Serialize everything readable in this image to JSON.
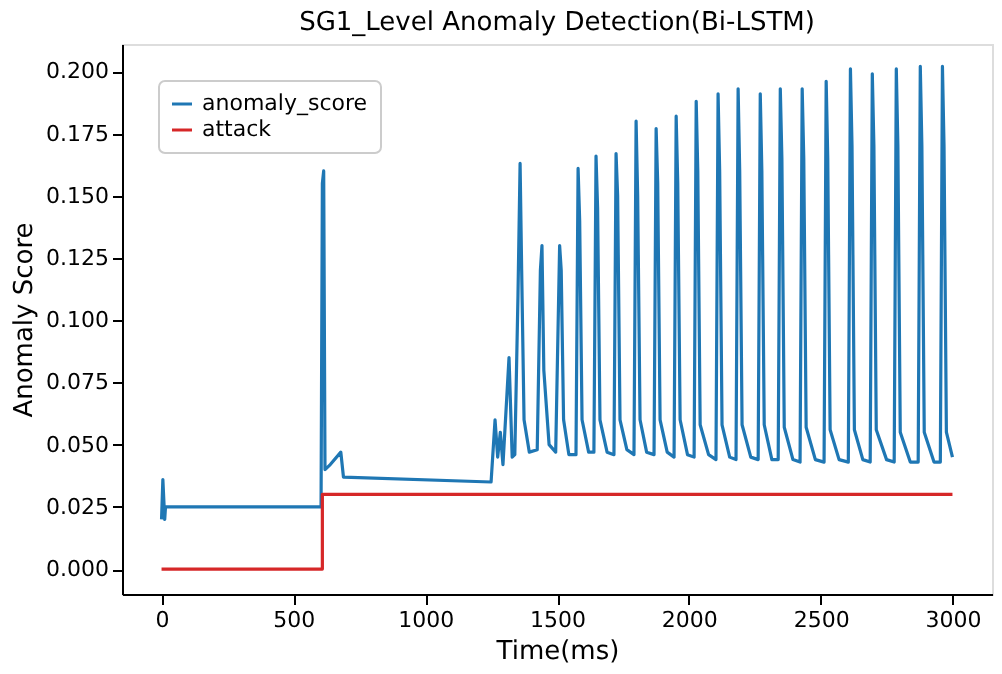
{
  "chart_data": {
    "type": "line",
    "title": "SG1_Level Anomaly Detection(Bi-LSTM)",
    "xlabel": "Time(ms)",
    "ylabel": "Anomaly Score",
    "xlim": [
      -150,
      3150
    ],
    "xticks": [
      0,
      500,
      1000,
      1500,
      2000,
      2500,
      3000
    ],
    "ylim": [
      -0.01,
      0.211
    ],
    "yticks": [
      {
        "value": 0,
        "label": "0.000"
      },
      {
        "value": 0.025,
        "label": "0.025"
      },
      {
        "value": 0.05,
        "label": "0.050"
      },
      {
        "value": 0.075,
        "label": "0.075"
      },
      {
        "value": 0.1,
        "label": "0.100"
      },
      {
        "value": 0.125,
        "label": "0.125"
      },
      {
        "value": 0.15,
        "label": "0.150"
      },
      {
        "value": 0.175,
        "label": "0.175"
      },
      {
        "value": 0.2,
        "label": "0.200"
      }
    ],
    "grid": false,
    "legend": "top left",
    "line_style": "solid",
    "marker": "none",
    "series": [
      {
        "name": "anomaly_score",
        "color": "#1f77b4",
        "x": [
          0,
          5,
          12,
          15,
          605,
          610,
          615,
          620,
          640,
          680,
          690,
          1250,
          1265,
          1275,
          1285,
          1295,
          1318,
          1330,
          1340,
          1352,
          1360,
          1366,
          1375,
          1395,
          1425,
          1437,
          1443,
          1450,
          1470,
          1495,
          1510,
          1516,
          1525,
          1545,
          1572,
          1580,
          1586,
          1595,
          1620,
          1640,
          1648,
          1654,
          1663,
          1690,
          1716,
          1724,
          1730,
          1739,
          1765,
          1792,
          1800,
          1806,
          1815,
          1840,
          1868,
          1876,
          1882,
          1891,
          1918,
          1944,
          1952,
          1958,
          1967,
          1995,
          2020,
          2028,
          2034,
          2043,
          2075,
          2103,
          2111,
          2117,
          2126,
          2155,
          2179,
          2187,
          2193,
          2202,
          2235,
          2263,
          2271,
          2277,
          2286,
          2315,
          2339,
          2347,
          2353,
          2362,
          2395,
          2422,
          2430,
          2436,
          2445,
          2480,
          2513,
          2521,
          2527,
          2536,
          2570,
          2605,
          2613,
          2619,
          2628,
          2660,
          2688,
          2696,
          2702,
          2711,
          2750,
          2779,
          2787,
          2793,
          2802,
          2840,
          2870,
          2878,
          2884,
          2893,
          2930,
          2954,
          2962,
          2968,
          2977,
          3000
        ],
        "values": [
          0.02,
          0.036,
          0.02,
          0.025,
          0.025,
          0.155,
          0.16,
          0.04,
          0.042,
          0.047,
          0.037,
          0.035,
          0.06,
          0.045,
          0.055,
          0.042,
          0.085,
          0.045,
          0.046,
          0.11,
          0.163,
          0.12,
          0.06,
          0.047,
          0.048,
          0.12,
          0.13,
          0.08,
          0.05,
          0.047,
          0.13,
          0.12,
          0.06,
          0.046,
          0.046,
          0.161,
          0.14,
          0.06,
          0.047,
          0.047,
          0.166,
          0.145,
          0.06,
          0.047,
          0.046,
          0.167,
          0.15,
          0.06,
          0.048,
          0.046,
          0.18,
          0.15,
          0.06,
          0.047,
          0.046,
          0.177,
          0.155,
          0.06,
          0.047,
          0.045,
          0.182,
          0.155,
          0.06,
          0.046,
          0.045,
          0.188,
          0.16,
          0.058,
          0.046,
          0.044,
          0.191,
          0.16,
          0.058,
          0.045,
          0.044,
          0.193,
          0.16,
          0.058,
          0.045,
          0.044,
          0.191,
          0.16,
          0.058,
          0.044,
          0.044,
          0.193,
          0.165,
          0.057,
          0.044,
          0.043,
          0.193,
          0.165,
          0.057,
          0.044,
          0.043,
          0.196,
          0.165,
          0.056,
          0.044,
          0.043,
          0.201,
          0.17,
          0.056,
          0.044,
          0.043,
          0.199,
          0.17,
          0.056,
          0.044,
          0.043,
          0.201,
          0.17,
          0.055,
          0.043,
          0.043,
          0.202,
          0.17,
          0.055,
          0.043,
          0.043,
          0.202,
          0.17,
          0.055,
          0.045
        ]
      },
      {
        "name": "attack",
        "color": "#d62728",
        "x": [
          0,
          610,
          610,
          3000
        ],
        "values": [
          0,
          0,
          0.03,
          0.03
        ]
      }
    ]
  }
}
